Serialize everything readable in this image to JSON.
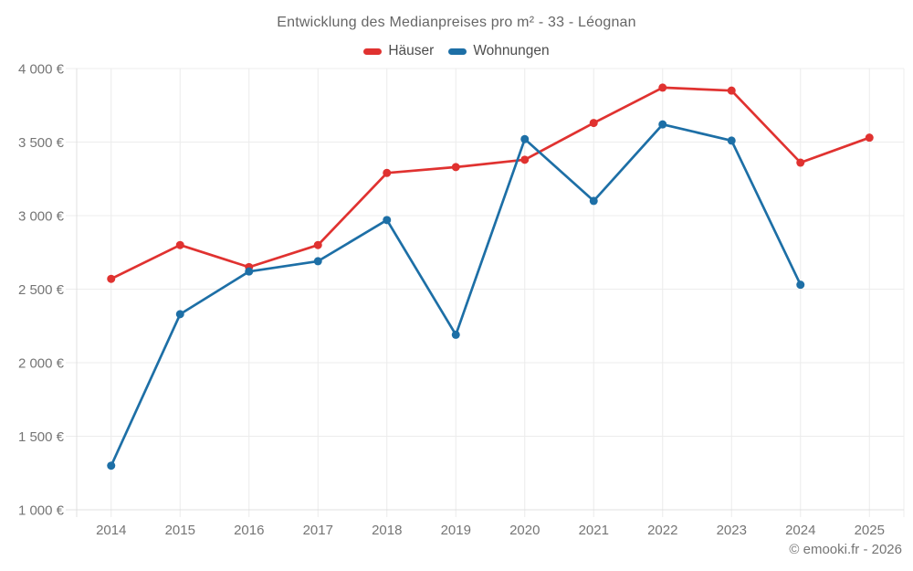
{
  "credit": "© emooki.fr - 2026",
  "chart_data": {
    "type": "line",
    "title": "Entwicklung des Medianpreises pro m² - 33 - Léognan",
    "categories": [
      "2014",
      "2015",
      "2016",
      "2017",
      "2018",
      "2019",
      "2020",
      "2021",
      "2022",
      "2023",
      "2024",
      "2025"
    ],
    "series": [
      {
        "name": "Häuser",
        "color": "#e03230",
        "values": [
          2570,
          2800,
          2650,
          2800,
          3290,
          3330,
          3380,
          3630,
          3870,
          3850,
          3360,
          3530
        ]
      },
      {
        "name": "Wohnungen",
        "color": "#1d6fa6",
        "values": [
          1300,
          2330,
          2620,
          2690,
          2970,
          2190,
          3520,
          3100,
          3620,
          3510,
          2530,
          null
        ]
      }
    ],
    "xlabel": "",
    "ylabel": "",
    "ylim": [
      1000,
      4000
    ],
    "ytick_step": 500,
    "yticks": [
      "1 000 €",
      "1 500 €",
      "2 000 €",
      "2 500 €",
      "3 000 €",
      "3 500 €",
      "4 000 €"
    ],
    "grid": true,
    "legend_position": "top",
    "marker": "circle",
    "colors": {
      "gridline": "#ececec",
      "axis_line": "#e0e0e0",
      "axis_text": "#757575"
    }
  }
}
